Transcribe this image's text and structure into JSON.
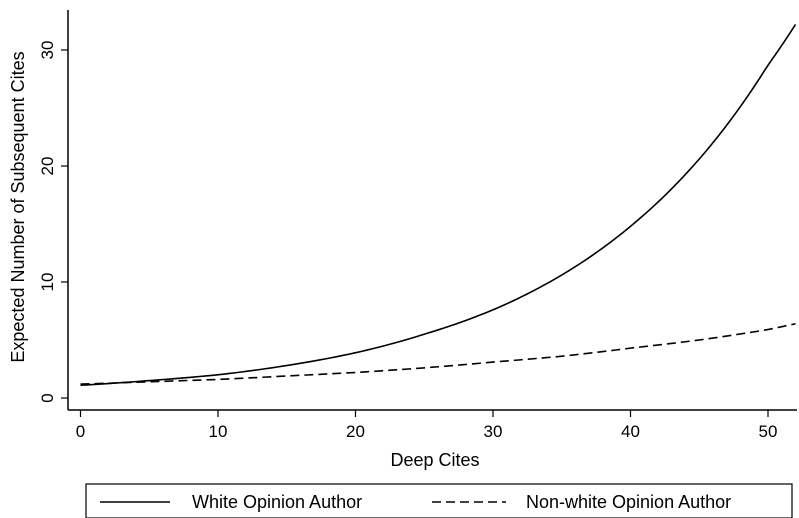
{
  "chart_data": {
    "type": "line",
    "xlabel": "Deep Cites",
    "ylabel": "Expected Number of Subsequent Cites",
    "xlim": [
      0,
      52
    ],
    "ylim": [
      0,
      32
    ],
    "x_ticks": [
      0,
      10,
      20,
      30,
      40,
      50
    ],
    "y_ticks": [
      0,
      10,
      20,
      30
    ],
    "grid": false,
    "legend_position": "bottom",
    "series": [
      {
        "name": "White Opinion Author",
        "style": "solid",
        "color": "#000000",
        "x": [
          0,
          5,
          10,
          15,
          20,
          25,
          30,
          35,
          40,
          45,
          50,
          52
        ],
        "y": [
          1.1,
          1.5,
          2.0,
          2.8,
          3.9,
          5.5,
          7.6,
          10.6,
          14.8,
          20.6,
          28.7,
          32.2
        ]
      },
      {
        "name": "Non-white Opinion Author",
        "style": "dashed",
        "color": "#000000",
        "x": [
          0,
          5,
          10,
          15,
          20,
          25,
          30,
          35,
          40,
          45,
          50,
          52
        ],
        "y": [
          1.2,
          1.4,
          1.6,
          1.9,
          2.2,
          2.6,
          3.1,
          3.6,
          4.3,
          5.0,
          5.9,
          6.4
        ]
      }
    ]
  }
}
